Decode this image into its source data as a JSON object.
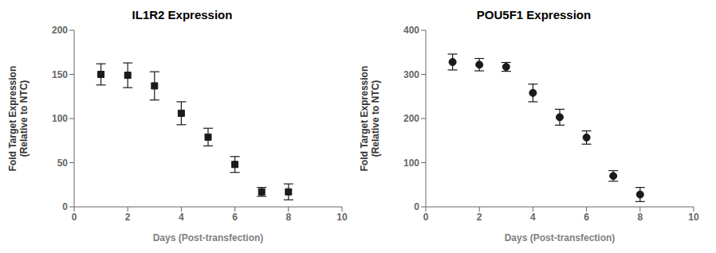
{
  "chart_data": [
    {
      "type": "scatter",
      "title": "IL1R2 Expression",
      "xlabel": "Days (Post-transfection)",
      "ylabel": "Fold Target Expression\n(Relative to NTC)",
      "x": [
        1,
        2,
        3,
        4,
        5,
        6,
        7,
        8
      ],
      "values": [
        150,
        149,
        137,
        106,
        79,
        48,
        17,
        17
      ],
      "yerr": [
        12,
        14,
        16,
        13,
        10,
        9,
        5,
        9
      ],
      "marker": "square",
      "color": "#1a1a1a",
      "xlim": [
        0,
        10
      ],
      "xticks": [
        0,
        2,
        4,
        6,
        8,
        10
      ],
      "ylim": [
        0,
        200
      ],
      "yticks": [
        0,
        50,
        100,
        150,
        200
      ]
    },
    {
      "type": "scatter",
      "title": "POU5F1 Expression",
      "xlabel": "Days (Post-transfection)",
      "ylabel": "Fold Target Expression\n(Relative to NTC)",
      "x": [
        1,
        2,
        3,
        4,
        5,
        6,
        7,
        8
      ],
      "values": [
        328,
        322,
        317,
        258,
        203,
        157,
        70,
        28
      ],
      "yerr": [
        18,
        14,
        10,
        20,
        18,
        15,
        12,
        16
      ],
      "marker": "circle",
      "color": "#1a1a1a",
      "xlim": [
        0,
        10
      ],
      "xticks": [
        0,
        2,
        4,
        6,
        8,
        10
      ],
      "ylim": [
        0,
        400
      ],
      "yticks": [
        0,
        100,
        200,
        300,
        400
      ]
    }
  ]
}
